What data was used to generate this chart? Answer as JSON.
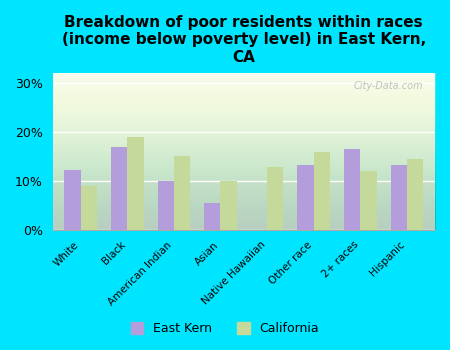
{
  "title": "Breakdown of poor residents within races\n(income below poverty level) in East Kern,\nCA",
  "categories": [
    "White",
    "Black",
    "American Indian",
    "Asian",
    "Native Hawaiian",
    "Other race",
    "2+ races",
    "Hispanic"
  ],
  "east_kern": [
    12.3,
    17.0,
    10.0,
    5.5,
    0,
    13.2,
    16.5,
    13.3
  ],
  "california": [
    9.0,
    19.0,
    15.0,
    10.0,
    12.8,
    15.8,
    12.0,
    14.5
  ],
  "east_kern_color": "#b39ddb",
  "california_color": "#c5d99b",
  "background_outer": "#00e5ff",
  "background_plot_top": "#e8f5e9",
  "background_plot_bottom": "#f5fbf0",
  "title_fontsize": 11,
  "ylabel_ticks": [
    "0%",
    "10%",
    "20%",
    "30%"
  ],
  "yticks": [
    0,
    10,
    20,
    30
  ],
  "ylim": [
    0,
    32
  ],
  "watermark": "City-Data.com"
}
